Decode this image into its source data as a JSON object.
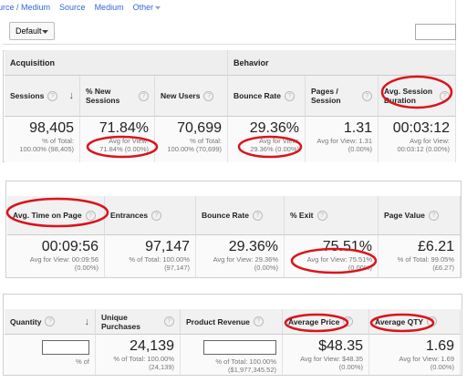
{
  "nav": [
    "urce / Medium",
    "Source",
    "Medium",
    "Other"
  ],
  "toolbar": {
    "dropdown": "Default"
  },
  "panels": [
    {
      "groups": [
        "Acquisition",
        "Behavior"
      ],
      "columns": [
        {
          "header": "Sessions",
          "value": "98,405",
          "sub": [
            "% of Total:",
            "100.00% (98,405)"
          ]
        },
        {
          "header": "% New Sessions",
          "value": "71.84%",
          "sub": [
            "Avg for View:",
            "71.84% (0.00%)"
          ]
        },
        {
          "header": "New Users",
          "value": "70,699",
          "sub": [
            "% of Total:",
            "100.00% (70,699)"
          ]
        },
        {
          "header": "Bounce Rate",
          "value": "29.36%",
          "sub": [
            "Avg for View:",
            "29.36% (0.00%)"
          ]
        },
        {
          "header": "Pages / Session",
          "value": "1.31",
          "sub": [
            "Avg for View: 1.31",
            "(0.00%)"
          ]
        },
        {
          "header": "Avg. Session Duration",
          "value": "00:03:12",
          "sub": [
            "Avg for View:",
            "00:03:12 (0.00%)"
          ]
        }
      ]
    },
    {
      "columns": [
        {
          "header": "Avg. Time on Page",
          "value": "00:09:56",
          "sub": [
            "Avg for View: 00:09:56",
            "(0.00%)"
          ]
        },
        {
          "header": "Entrances",
          "value": "97,147",
          "sub": [
            "% of Total: 100.00%",
            "(97,147)"
          ]
        },
        {
          "header": "Bounce Rate",
          "value": "29.36%",
          "sub": [
            "Avg for View: 29.36%",
            "(0.00%)"
          ]
        },
        {
          "header": "% Exit",
          "value": "75.51%",
          "sub": [
            "Avg for View: 75.51%",
            "(0.00%)"
          ]
        },
        {
          "header": "Page Value",
          "value": "£6.21",
          "sub": [
            "% of Total: 99.05%",
            "(£6.27)"
          ]
        }
      ]
    },
    {
      "columns": [
        {
          "header": "Quantity",
          "sub": [
            "% of"
          ]
        },
        {
          "header": "Unique Purchases",
          "value": "24,139",
          "sub": [
            "% of Total: 100.00%",
            "(24,139)"
          ]
        },
        {
          "header": "Product Revenue",
          "sub": [
            "% of Total: 100.00%",
            "($1,977,345.52)"
          ]
        },
        {
          "header": "Average Price",
          "value": "$48.35",
          "sub": [
            "Avg for View: $48.35",
            "(0.00%)"
          ]
        },
        {
          "header": "Average QTY",
          "value": "1.69",
          "sub": [
            "Avg for View: 1.69",
            "(0.00%)"
          ]
        }
      ]
    }
  ]
}
